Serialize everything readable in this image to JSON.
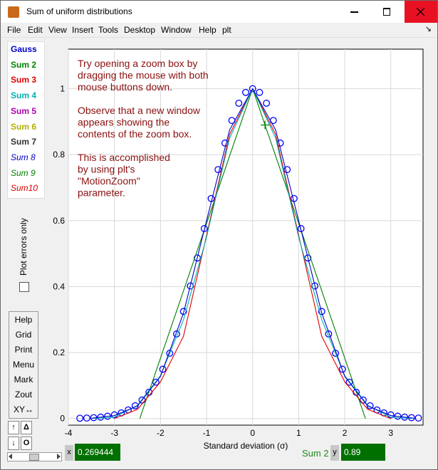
{
  "window": {
    "title": "Sum of uniform distributions"
  },
  "menu": [
    "File",
    "Edit",
    "View",
    "Insert",
    "Tools",
    "Desktop",
    "Window",
    "Help",
    "plt"
  ],
  "legend": [
    {
      "label": "Gauss",
      "color": "#0000c8",
      "italic": false
    },
    {
      "label": "Sum 2",
      "color": "#008000",
      "italic": false
    },
    {
      "label": "Sum 3",
      "color": "#e00000",
      "italic": false
    },
    {
      "label": "Sum 4",
      "color": "#00b0b0",
      "italic": false
    },
    {
      "label": "Sum 5",
      "color": "#b000b0",
      "italic": false
    },
    {
      "label": "Sum 6",
      "color": "#b0b000",
      "italic": false
    },
    {
      "label": "Sum 7",
      "color": "#303030",
      "italic": false
    },
    {
      "label": "Sum 8",
      "color": "#0000c8",
      "italic": true
    },
    {
      "label": "Sum 9",
      "color": "#008000",
      "italic": true
    },
    {
      "label": "Sum10",
      "color": "#e00000",
      "italic": true
    }
  ],
  "side": {
    "plot_errors_label": "Plot errors only",
    "buttons": [
      "Help",
      "Grid",
      "Print",
      "Menu",
      "Mark",
      "Zout",
      "XY↔"
    ],
    "small_buttons": [
      "↑",
      "Δ",
      "↓",
      "O"
    ]
  },
  "annotation": [
    "Try opening a zoom box by",
    "dragging the mouse with both",
    "mouse buttons down.",
    "",
    "Observe that a new window",
    "appears showing the",
    "contents of the zoom box.",
    "",
    "This is accomplished",
    "by using plt's",
    "\"MotionZoom\"",
    "parameter."
  ],
  "readout": {
    "x_label": "x",
    "x_value": "0.269444",
    "y_name": "Sum 2",
    "y_label": "y",
    "y_value": "0.89"
  },
  "chart_data": {
    "type": "line",
    "xlabel": "Standard deviation (σ)",
    "ylabel": "",
    "xlim": [
      -4,
      3.7
    ],
    "ylim": [
      -0.02,
      1.12
    ],
    "xticks": [
      -4,
      -3,
      -2,
      -1,
      0,
      1,
      2,
      3
    ],
    "yticks": [
      0,
      0.2,
      0.4,
      0.6,
      0.8,
      1
    ],
    "cursor": {
      "x": 0.269444,
      "y": 0.89
    },
    "series": [
      {
        "name": "Gauss",
        "style": "circles",
        "color": "#0000ff",
        "x": [
          -3.75,
          -3.6,
          -3.45,
          -3.3,
          -3.15,
          -3.0,
          -2.85,
          -2.7,
          -2.55,
          -2.4,
          -2.25,
          -2.1,
          -1.95,
          -1.8,
          -1.65,
          -1.5,
          -1.35,
          -1.2,
          -1.05,
          -0.9,
          -0.75,
          -0.6,
          -0.45,
          -0.3,
          -0.15,
          0.0,
          0.15,
          0.3,
          0.45,
          0.6,
          0.75,
          0.9,
          1.05,
          1.2,
          1.35,
          1.5,
          1.65,
          1.8,
          1.95,
          2.1,
          2.25,
          2.4,
          2.55,
          2.7,
          2.85,
          3.0,
          3.15,
          3.3,
          3.45,
          3.6
        ],
        "y": [
          0.0009,
          0.0015,
          0.0026,
          0.0043,
          0.007,
          0.0111,
          0.0172,
          0.0261,
          0.0387,
          0.0561,
          0.0796,
          0.1103,
          0.1495,
          0.1979,
          0.2564,
          0.3247,
          0.402,
          0.4868,
          0.5759,
          0.667,
          0.7548,
          0.8353,
          0.9037,
          0.956,
          0.9888,
          1.0,
          0.9888,
          0.956,
          0.9037,
          0.8353,
          0.7548,
          0.667,
          0.5759,
          0.4868,
          0.402,
          0.3247,
          0.2564,
          0.1979,
          0.1495,
          0.1103,
          0.0796,
          0.0561,
          0.0387,
          0.0261,
          0.0172,
          0.0111,
          0.007,
          0.0043,
          0.0026,
          0.0015
        ]
      },
      {
        "name": "Sum 2",
        "style": "line",
        "color": "#008000",
        "x": [
          -2.449,
          0,
          2.449
        ],
        "y": [
          0,
          1,
          0
        ]
      },
      {
        "name": "Sum 3",
        "style": "line",
        "color": "#e00000",
        "x": [
          -3.0,
          -2.5,
          -2.0,
          -1.5,
          -1.0,
          -0.5,
          0,
          0.5,
          1.0,
          1.5,
          2.0,
          2.5,
          3.0
        ],
        "y": [
          0,
          0.0278,
          0.1111,
          0.25,
          0.5556,
          0.8611,
          1.0,
          0.8611,
          0.5556,
          0.25,
          0.1111,
          0.0278,
          0
        ]
      },
      {
        "name": "Sum 4",
        "style": "line",
        "color": "#00b0b0",
        "x": [
          -3.46,
          -3.0,
          -2.5,
          -2.0,
          -1.5,
          -1.0,
          -0.5,
          0,
          0.5,
          1.0,
          1.5,
          2.0,
          2.5,
          3.0,
          3.46
        ],
        "y": [
          0,
          0.004,
          0.04,
          0.13,
          0.3,
          0.55,
          0.85,
          1.0,
          0.85,
          0.55,
          0.3,
          0.13,
          0.04,
          0.004,
          0
        ]
      },
      {
        "name": "Sum 8",
        "style": "line",
        "color": "#0000c8",
        "x": [
          -3.5,
          -3.0,
          -2.5,
          -2.0,
          -1.5,
          -1.0,
          -0.5,
          0,
          0.5,
          1.0,
          1.5,
          2.0,
          2.5,
          3.0,
          3.5
        ],
        "y": [
          0.001,
          0.009,
          0.038,
          0.128,
          0.32,
          0.6,
          0.875,
          1.0,
          0.875,
          0.6,
          0.32,
          0.128,
          0.038,
          0.009,
          0.001
        ]
      }
    ]
  }
}
